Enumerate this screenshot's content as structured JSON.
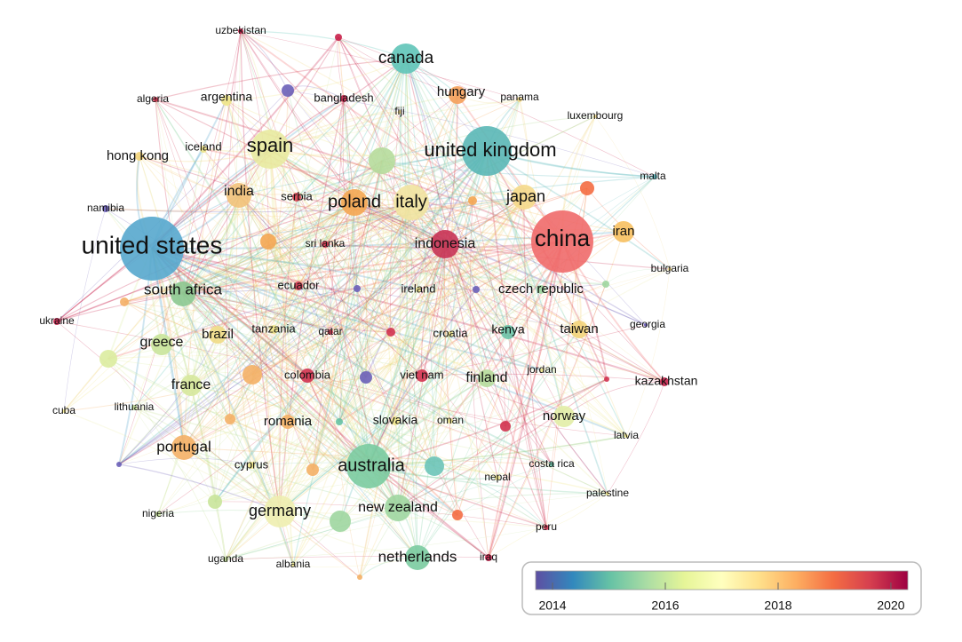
{
  "nodes": [
    {
      "label": "uzbekistan",
      "color": "#c8204a"
    },
    {
      "label": "canada",
      "color": "#5fc4b8"
    },
    {
      "label": "hungary",
      "color": "#f5a05a"
    },
    {
      "label": "panama",
      "color": "#f2d98a"
    },
    {
      "label": "algeria",
      "color": "#d2334f"
    },
    {
      "label": "argentina",
      "color": "#f0e58a"
    },
    {
      "label": "bangladesh",
      "color": "#c8204a"
    },
    {
      "label": "fiji",
      "color": "#f2d98a"
    },
    {
      "label": "luxembourg",
      "color": "#f2d98a"
    },
    {
      "label": "united kingdom",
      "color": "#5ab7b6"
    },
    {
      "label": "spain",
      "color": "#e8eaa0"
    },
    {
      "label": "hong kong",
      "color": "#f3d47a"
    },
    {
      "label": "iceland",
      "color": "#f0e58a"
    },
    {
      "label": "malta",
      "color": "#5fb9c0"
    },
    {
      "label": "india",
      "color": "#f2c27a"
    },
    {
      "label": "serbia",
      "color": "#d8404f"
    },
    {
      "label": "poland",
      "color": "#f4a652"
    },
    {
      "label": "italy",
      "color": "#f1e3a0"
    },
    {
      "label": "japan",
      "color": "#f5d98a"
    },
    {
      "label": "namibia",
      "color": "#6a5fb8"
    },
    {
      "label": "united states",
      "color": "#56a7cd"
    },
    {
      "label": "sri lanka",
      "color": "#d2334f"
    },
    {
      "label": "indonesia",
      "color": "#c83355"
    },
    {
      "label": "china",
      "color": "#ef6a6a"
    },
    {
      "label": "iran",
      "color": "#f7c060"
    },
    {
      "label": "bulgaria",
      "color": "#f2d98a"
    },
    {
      "label": "south africa",
      "color": "#8cc890"
    },
    {
      "label": "ecuador",
      "color": "#d2334f"
    },
    {
      "label": "ireland",
      "color": "#f0e58a"
    },
    {
      "label": "czech republic",
      "color": "#9fd6a0"
    },
    {
      "label": "ukraine",
      "color": "#c8204a"
    },
    {
      "label": "georgia",
      "color": "#6a5fb8"
    },
    {
      "label": "greece",
      "color": "#c9e49a"
    },
    {
      "label": "brazil",
      "color": "#f0dc86"
    },
    {
      "label": "tanzania",
      "color": "#f0e58a"
    },
    {
      "label": "qatar",
      "color": "#d2334f"
    },
    {
      "label": "croatia",
      "color": "#f0e58a"
    },
    {
      "label": "kenya",
      "color": "#6cc4a8"
    },
    {
      "label": "taiwan",
      "color": "#f3d47a"
    },
    {
      "label": "colombia",
      "color": "#d2334f"
    },
    {
      "label": "viet nam",
      "color": "#d2334f"
    },
    {
      "label": "finland",
      "color": "#b6dc9c"
    },
    {
      "label": "jordan",
      "color": "#f0e58a"
    },
    {
      "label": "kazakhstan",
      "color": "#c8204a"
    },
    {
      "label": "cuba",
      "color": "#f0e58a"
    },
    {
      "label": "lithuania",
      "color": "#c9e49a"
    },
    {
      "label": "france",
      "color": "#d6e89c"
    },
    {
      "label": "romania",
      "color": "#f4b066"
    },
    {
      "label": "slovakia",
      "color": "#f0e58a"
    },
    {
      "label": "oman",
      "color": "#f0e58a"
    },
    {
      "label": "norway",
      "color": "#e2eda6"
    },
    {
      "label": "latvia",
      "color": "#f0e58a"
    },
    {
      "label": "portugal",
      "color": "#f4b066"
    },
    {
      "label": "cyprus",
      "color": "#f0e58a"
    },
    {
      "label": "australia",
      "color": "#7acba0"
    },
    {
      "label": "costa rica",
      "color": "#6cc4a8"
    },
    {
      "label": "nepal",
      "color": "#f0e58a"
    },
    {
      "label": "palestine",
      "color": "#f0e58a"
    },
    {
      "label": "nigeria",
      "color": "#c9e49a"
    },
    {
      "label": "germany",
      "color": "#eeeeb0"
    },
    {
      "label": "new zealand",
      "color": "#9fd6a0"
    },
    {
      "label": "peru",
      "color": "#d2334f"
    },
    {
      "label": "uganda",
      "color": "#c9e49a"
    },
    {
      "label": "albania",
      "color": "#f0e58a"
    },
    {
      "label": "netherlands",
      "color": "#7acba0"
    },
    {
      "label": "iraq",
      "color": "#c8204a"
    }
  ],
  "legend": {
    "lim": [
      2013.7,
      2020.3
    ],
    "ticks": [
      2014,
      2016,
      2018,
      2020
    ],
    "colors": [
      "#5e4fa2",
      "#3288bd",
      "#66c2a5",
      "#abdda4",
      "#e6f598",
      "#ffffbf",
      "#fee08b",
      "#fdae61",
      "#f46d43",
      "#d53e4f",
      "#9e0142"
    ]
  }
}
